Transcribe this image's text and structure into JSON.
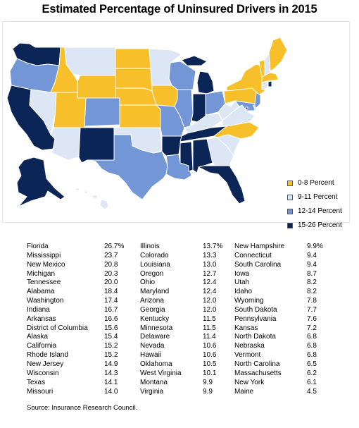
{
  "title": "Estimated Percentage of Uninsured Drivers in 2015",
  "colors": {
    "0-8": "#f7c02a",
    "9-11": "#dde6f4",
    "12-14": "#7397d6",
    "15-26": "#0c2557",
    "border": "#ffffff"
  },
  "legend": [
    {
      "label": "0-8 Percent",
      "category": "0-8"
    },
    {
      "label": "9-11 Percent",
      "category": "9-11"
    },
    {
      "label": "12-14 Percent",
      "category": "12-14"
    },
    {
      "label": "15-26 Percent",
      "category": "15-26"
    }
  ],
  "table": [
    [
      {
        "state": "Florida",
        "value": "26.7%"
      },
      {
        "state": "Mississippi",
        "value": "23.7"
      },
      {
        "state": "New Mexico",
        "value": "20.8"
      },
      {
        "state": "Michigan",
        "value": "20.3"
      },
      {
        "state": "Tennessee",
        "value": "20.0"
      },
      {
        "state": "Alabama",
        "value": "18.4"
      },
      {
        "state": "Washington",
        "value": "17.4"
      },
      {
        "state": "Indiana",
        "value": "16.7"
      },
      {
        "state": "Arkansas",
        "value": "16.6"
      },
      {
        "state": "District of Columbia",
        "value": "15.6"
      },
      {
        "state": "Alaska",
        "value": "15.4"
      },
      {
        "state": "California",
        "value": "15.2"
      },
      {
        "state": "Rhode Island",
        "value": "15.2"
      },
      {
        "state": "New Jersey",
        "value": "14.9"
      },
      {
        "state": "Wisconsin",
        "value": "14.3"
      },
      {
        "state": "Texas",
        "value": "14.1"
      },
      {
        "state": "Missouri",
        "value": "14.0"
      }
    ],
    [
      {
        "state": "Illinois",
        "value": "13.7%"
      },
      {
        "state": "Colorado",
        "value": "13.3"
      },
      {
        "state": "Louisiana",
        "value": "13.0"
      },
      {
        "state": "Oregon",
        "value": "12.7"
      },
      {
        "state": "Ohio",
        "value": "12.4"
      },
      {
        "state": "Maryland",
        "value": "12.4"
      },
      {
        "state": "Arizona",
        "value": "12.0"
      },
      {
        "state": "Georgia",
        "value": "12.0"
      },
      {
        "state": "Kentucky",
        "value": "11.5"
      },
      {
        "state": "Minnesota",
        "value": "11.5"
      },
      {
        "state": "Delaware",
        "value": "11.4"
      },
      {
        "state": "Nevada",
        "value": "10.6"
      },
      {
        "state": "Hawaii",
        "value": "10.6"
      },
      {
        "state": "Oklahoma",
        "value": "10.5"
      },
      {
        "state": "West Virginia",
        "value": "10.1"
      },
      {
        "state": "Montana",
        "value": "9.9"
      },
      {
        "state": "Virginia",
        "value": "9.9"
      }
    ],
    [
      {
        "state": "New Hampshire",
        "value": "9.9%"
      },
      {
        "state": "Connecticut",
        "value": "9.4"
      },
      {
        "state": "South Carolina",
        "value": "9.4"
      },
      {
        "state": "Iowa",
        "value": "8.7"
      },
      {
        "state": "Utah",
        "value": "8.2"
      },
      {
        "state": "Idaho",
        "value": "8.2"
      },
      {
        "state": "Wyoming",
        "value": "7.8"
      },
      {
        "state": "South Dakota",
        "value": "7.7"
      },
      {
        "state": "Pennsylvania",
        "value": "7.6"
      },
      {
        "state": "Kansas",
        "value": "7.2"
      },
      {
        "state": "North Dakota",
        "value": "6.8"
      },
      {
        "state": "Nebraska",
        "value": "6.8"
      },
      {
        "state": "Vermont",
        "value": "6.8"
      },
      {
        "state": "North Carolina",
        "value": "6.5"
      },
      {
        "state": "Massachusetts",
        "value": "6.2"
      },
      {
        "state": "New York",
        "value": "6.1"
      },
      {
        "state": "Maine",
        "value": "4.5"
      }
    ]
  ],
  "source": "Source: Insurance Research Council."
}
